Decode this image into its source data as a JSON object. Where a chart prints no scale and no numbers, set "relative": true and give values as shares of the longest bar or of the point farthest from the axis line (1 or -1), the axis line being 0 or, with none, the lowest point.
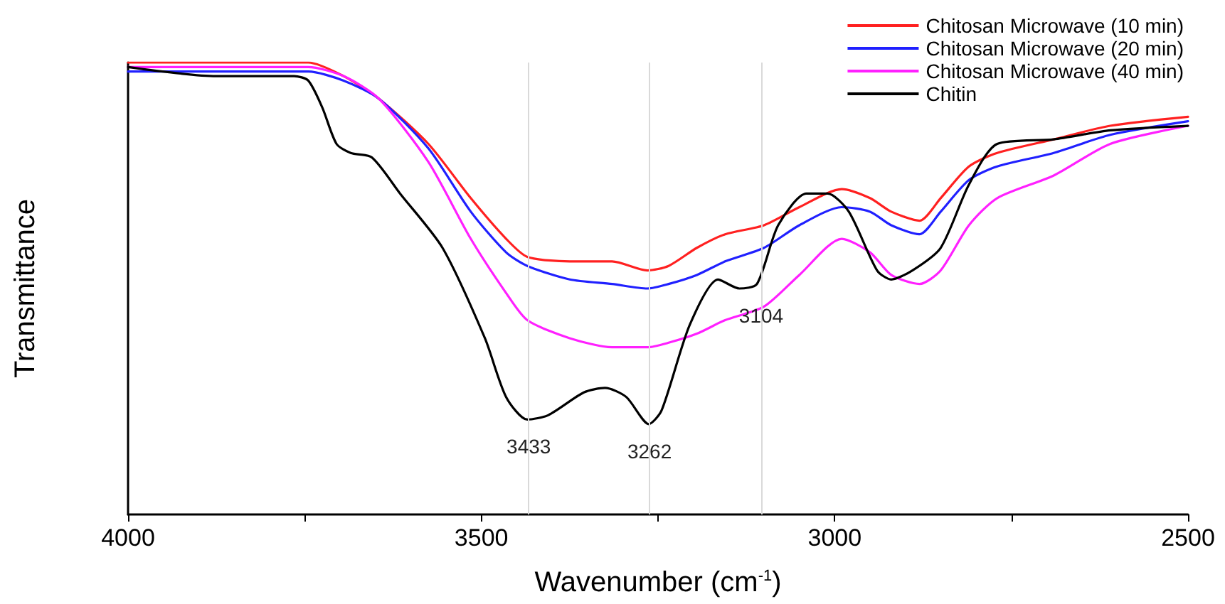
{
  "chart_data": {
    "type": "line",
    "relative": true,
    "xlabel": "Wavenumber (cm$^{-1}$)",
    "ylabel": "Transmittance",
    "xlim": [
      4000,
      2500
    ],
    "xticks": [
      4000,
      {
        "value": 3750,
        "label": null
      },
      3500,
      {
        "value": 3250,
        "label": null
      },
      3000,
      {
        "value": 2750,
        "label": null
      },
      2500
    ],
    "x": [
      4000,
      3875,
      3805,
      3745,
      3695,
      3645,
      3575,
      3515,
      3465,
      3435,
      3375,
      3315,
      3265,
      3235,
      3195,
      3155,
      3100,
      3050,
      2990,
      2950,
      2920,
      2880,
      2850,
      2810,
      2770,
      2690,
      2610,
      2500
    ],
    "series": [
      {
        "name": "Chitosan Microwave (10 min)",
        "color": "#ff2020",
        "values": [
          1.0,
          1.0,
          1.0,
          1.0,
          0.97,
          0.92,
          0.82,
          0.7,
          0.61,
          0.57,
          0.56,
          0.56,
          0.54,
          0.55,
          0.59,
          0.62,
          0.64,
          0.68,
          0.72,
          0.7,
          0.67,
          0.65,
          0.7,
          0.77,
          0.8,
          0.83,
          0.86,
          0.88
        ]
      },
      {
        "name": "Chitosan Microwave (20 min)",
        "color": "#2020ff",
        "values": [
          0.98,
          0.98,
          0.98,
          0.98,
          0.96,
          0.92,
          0.81,
          0.67,
          0.58,
          0.55,
          0.52,
          0.51,
          0.5,
          0.51,
          0.53,
          0.56,
          0.59,
          0.64,
          0.68,
          0.67,
          0.64,
          0.62,
          0.67,
          0.74,
          0.77,
          0.8,
          0.84,
          0.87
        ]
      },
      {
        "name": "Chitosan Microwave (40 min)",
        "color": "#ff20ff",
        "values": [
          0.99,
          0.99,
          0.99,
          0.99,
          0.97,
          0.92,
          0.78,
          0.61,
          0.49,
          0.43,
          0.39,
          0.37,
          0.37,
          0.38,
          0.4,
          0.43,
          0.46,
          0.53,
          0.61,
          0.58,
          0.53,
          0.51,
          0.54,
          0.64,
          0.7,
          0.75,
          0.82,
          0.86
        ]
      },
      {
        "name": "Chitin",
        "color": "#000000",
        "x": [
          4000,
          3875,
          3805,
          3765,
          3745,
          3725,
          3705,
          3685,
          3655,
          3615,
          3555,
          3495,
          3465,
          3435,
          3405,
          3355,
          3325,
          3295,
          3263,
          3245,
          3205,
          3165,
          3135,
          3110,
          3080,
          3040,
          3010,
          2980,
          2940,
          2920,
          2890,
          2850,
          2810,
          2770,
          2690,
          2610,
          2500
        ],
        "values": [
          0.99,
          0.97,
          0.97,
          0.97,
          0.96,
          0.9,
          0.82,
          0.8,
          0.79,
          0.71,
          0.59,
          0.39,
          0.26,
          0.21,
          0.22,
          0.27,
          0.28,
          0.26,
          0.2,
          0.23,
          0.42,
          0.52,
          0.5,
          0.51,
          0.64,
          0.71,
          0.71,
          0.67,
          0.54,
          0.52,
          0.54,
          0.59,
          0.73,
          0.82,
          0.83,
          0.85,
          0.86
        ]
      }
    ],
    "ref_lines": [
      {
        "axis": "x",
        "value": 3433,
        "color": "#d9d9d9"
      },
      {
        "axis": "x",
        "value": 3262,
        "color": "#d9d9d9"
      },
      {
        "axis": "x",
        "value": 3104,
        "color": "#d9d9d9"
      }
    ],
    "annotations": [
      {
        "text": "3433",
        "x": 3433,
        "y": 0.21
      },
      {
        "text": "3262",
        "x": 3262,
        "y": 0.2
      },
      {
        "text": "3104",
        "x": 3104,
        "y": 0.5
      }
    ],
    "legend": "top right",
    "grid": false,
    "marker": "none",
    "line_style": "solid"
  }
}
